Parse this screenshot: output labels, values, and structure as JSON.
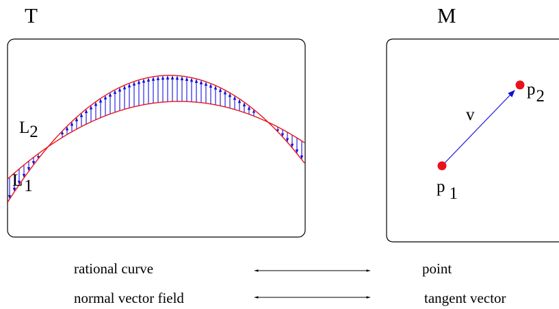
{
  "panels": {
    "left": {
      "title": "T",
      "label_l1": "L",
      "label_l1_sub": "1",
      "label_l2": "L",
      "label_l2_sub": "2"
    },
    "right": {
      "title": "M",
      "label_p1": "p",
      "label_p1_sub": "1",
      "label_p2": "p",
      "label_p2_sub": "2",
      "label_v": "v"
    }
  },
  "correspondence": [
    {
      "left": "rational curve",
      "right": "point"
    },
    {
      "left": "normal vector field",
      "right": "tangent vector"
    }
  ],
  "colors": {
    "curve": "#e8121c",
    "vector": "#1010d8",
    "point": "#e8121c",
    "frame": "#000000"
  }
}
